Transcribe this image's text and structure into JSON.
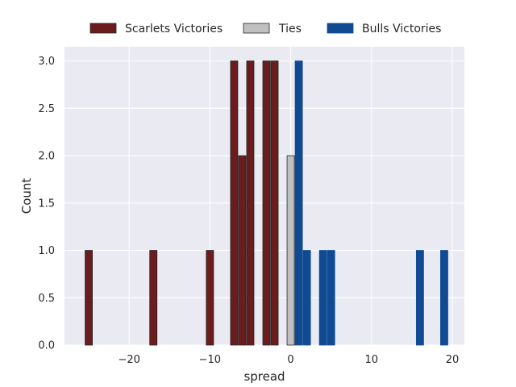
{
  "chart_data": {
    "type": "bar",
    "xlabel": "spread",
    "ylabel": "Count",
    "xlim": [
      -28,
      21.5
    ],
    "ylim": [
      0,
      3.15
    ],
    "x_ticks": [
      -20,
      -10,
      0,
      10,
      20
    ],
    "x_tick_labels": [
      "−20",
      "−10",
      "0",
      "10",
      "20"
    ],
    "y_ticks": [
      0,
      0.5,
      1,
      1.5,
      2,
      2.5,
      3
    ],
    "y_tick_labels": [
      "0.0",
      "0.5",
      "1.0",
      "1.5",
      "2.0",
      "2.5",
      "3.0"
    ],
    "bar_width": 0.9,
    "grid": true,
    "legend_position": "top",
    "series": [
      {
        "name": "Scarlets Victories",
        "color": "#6b1d1d",
        "edge": "#262626",
        "x": [
          -25,
          -17,
          -10,
          -7,
          -6,
          -5,
          -3,
          -2
        ],
        "values": [
          1,
          1,
          1,
          3,
          2,
          3,
          3,
          3
        ]
      },
      {
        "name": "Ties",
        "color": "#c0c0c0",
        "edge": "#262626",
        "x": [
          0
        ],
        "values": [
          2
        ]
      },
      {
        "name": "Bulls Victories",
        "color": "#0f4a92",
        "edge": "#0f4a92",
        "x": [
          1,
          2,
          4,
          5,
          16,
          19
        ],
        "values": [
          3,
          1,
          1,
          1,
          1,
          1
        ]
      }
    ]
  },
  "colors": {
    "plot_background": "#eaeaf2",
    "grid": "#ffffff",
    "text": "#262626"
  }
}
